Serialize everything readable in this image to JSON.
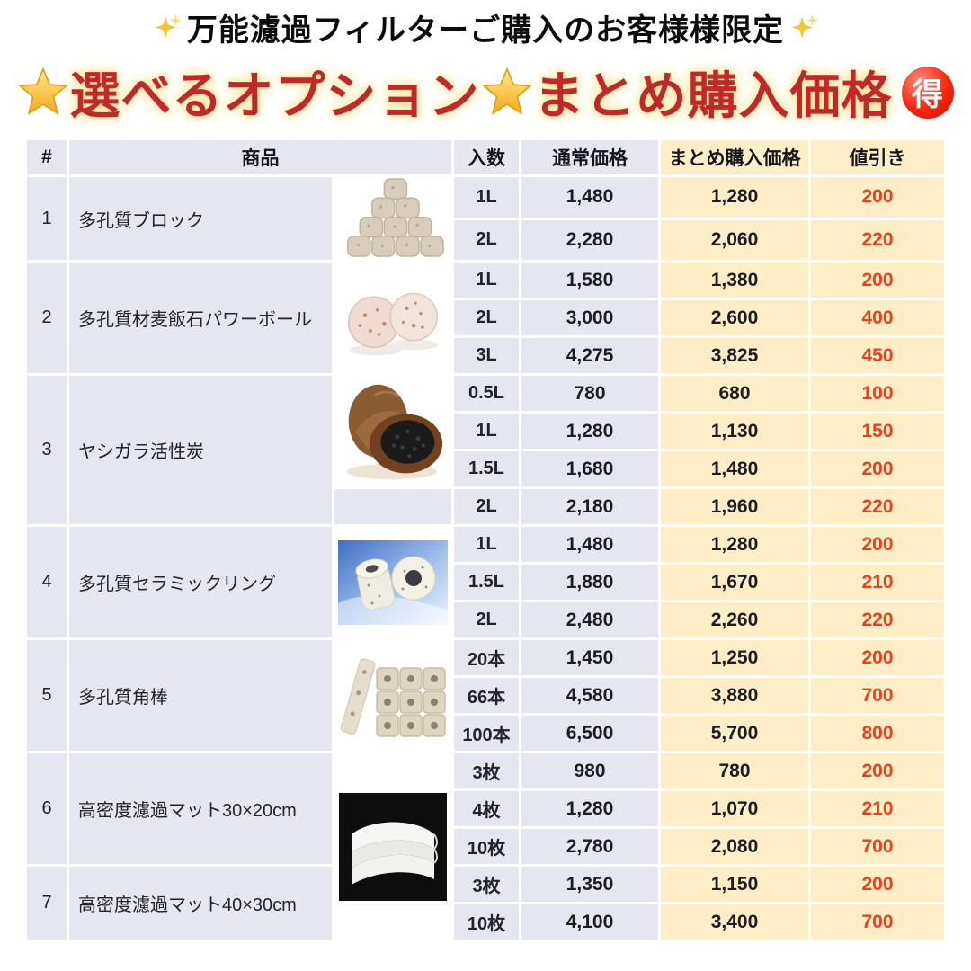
{
  "page": {
    "top_banner": "万能濾過フィルターご購入のお客様様限定",
    "title": {
      "part1": "選べるオプション",
      "part2": "まとめ購入価格",
      "badge": "得"
    },
    "icons": {
      "banner_left": "sparkles-icon",
      "banner_right": "sparkles-icon",
      "title_star_left": "glowing-star-icon",
      "title_star_middle": "glowing-star-icon",
      "badge": "toku-discount-badge"
    }
  },
  "table": {
    "headers": {
      "num": "#",
      "product": "商品",
      "qty": "入数",
      "normal_price": "通常価格",
      "bundle_price": "まとめ購入価格",
      "discount": "値引き"
    },
    "products": [
      {
        "num": "1",
        "name": "多孔質ブロック",
        "image": "porous-blocks",
        "image_span": 2,
        "rows": [
          [
            "1L",
            "1,480",
            "1,280",
            "200"
          ],
          [
            "2L",
            "2,280",
            "2,060",
            "220"
          ]
        ]
      },
      {
        "num": "2",
        "name": "多孔質材麦飯石パワーボール",
        "image": "power-balls",
        "image_span": 3,
        "rows": [
          [
            "1L",
            "1,580",
            "1,380",
            "200"
          ],
          [
            "2L",
            "3,000",
            "2,600",
            "400"
          ],
          [
            "3L",
            "4,275",
            "3,825",
            "450"
          ]
        ]
      },
      {
        "num": "3",
        "name": "ヤシガラ活性炭",
        "image": "activated-carbon",
        "image_span": 3,
        "rows": [
          [
            "0.5L",
            "780",
            "680",
            "100"
          ],
          [
            "1L",
            "1,280",
            "1,130",
            "150"
          ],
          [
            "1.5L",
            "1,680",
            "1,480",
            "200"
          ],
          [
            "2L",
            "2,180",
            "1,960",
            "220"
          ]
        ]
      },
      {
        "num": "4",
        "name": "多孔質セラミックリング",
        "image": "ceramic-rings",
        "image_span": 3,
        "rows": [
          [
            "1L",
            "1,480",
            "1,280",
            "200"
          ],
          [
            "1.5L",
            "1,880",
            "1,670",
            "210"
          ],
          [
            "2L",
            "2,480",
            "2,260",
            "220"
          ]
        ]
      },
      {
        "num": "5",
        "name": "多孔質角棒",
        "image": "square-rods",
        "image_span": 3,
        "rows": [
          [
            "20本",
            "1,450",
            "1,250",
            "200"
          ],
          [
            "66本",
            "4,580",
            "3,880",
            "700"
          ],
          [
            "100本",
            "6,500",
            "5,700",
            "800"
          ]
        ]
      },
      {
        "num": "6",
        "name": "高密度濾過マット30×20cm",
        "image": "filter-mats",
        "image_span": 5,
        "rows": [
          [
            "3枚",
            "980",
            "780",
            "200"
          ],
          [
            "4枚",
            "1,280",
            "1,070",
            "210"
          ],
          [
            "10枚",
            "2,780",
            "2,080",
            "700"
          ]
        ]
      },
      {
        "num": "7",
        "name": "高密度濾過マット40×30cm",
        "image": null,
        "image_span": 0,
        "rows": [
          [
            "3枚",
            "1,350",
            "1,150",
            "200"
          ],
          [
            "10枚",
            "4,100",
            "3,400",
            "700"
          ]
        ]
      }
    ]
  },
  "colors": {
    "row_lavender": "#e5e6f0",
    "highlight_cream": "#fdeec6",
    "discount_red": "#f23c1c",
    "title_red": "#c32727"
  }
}
